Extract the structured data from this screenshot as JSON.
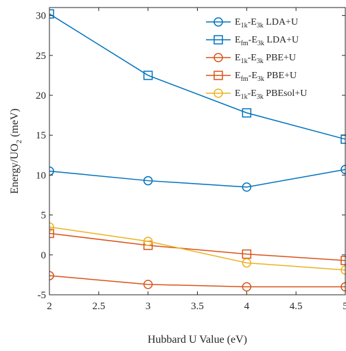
{
  "chart_data": {
    "type": "line",
    "xlabel": "Hubbard U Value (eV)",
    "ylabel_main": "Energy/UO",
    "ylabel_sub": "2",
    "ylabel_unit": " (meV)",
    "xlim": [
      2,
      5
    ],
    "ylim": [
      -5,
      31
    ],
    "x_ticks": [
      "2",
      "2.5",
      "3",
      "3.5",
      "4",
      "4.5",
      "5"
    ],
    "y_ticks": [
      "-5",
      "0",
      "5",
      "10",
      "15",
      "20",
      "25",
      "30"
    ],
    "legend_position": "top-right",
    "x": [
      2,
      3,
      4,
      5
    ],
    "series": [
      {
        "name_parts": [
          [
            "E",
            ""
          ],
          [
            "1k",
            "sub"
          ],
          [
            "-E",
            ""
          ],
          [
            "3k",
            "sub"
          ],
          [
            " LDA+U",
            ""
          ]
        ],
        "color": "#0072BD",
        "marker": "circle",
        "values": [
          10.5,
          9.3,
          8.5,
          10.7
        ]
      },
      {
        "name_parts": [
          [
            "E",
            ""
          ],
          [
            "fm",
            "sub"
          ],
          [
            "-E",
            ""
          ],
          [
            "3k",
            "sub"
          ],
          [
            " LDA+U",
            ""
          ]
        ],
        "color": "#0072BD",
        "marker": "square",
        "values": [
          30.2,
          22.5,
          17.8,
          14.5
        ]
      },
      {
        "name_parts": [
          [
            "E",
            ""
          ],
          [
            "1k",
            "sub"
          ],
          [
            "-E",
            ""
          ],
          [
            "3k",
            "sub"
          ],
          [
            " PBE+U",
            ""
          ]
        ],
        "color": "#D95319",
        "marker": "circle",
        "values": [
          -2.6,
          -3.7,
          -4.0,
          -4.0
        ]
      },
      {
        "name_parts": [
          [
            "E",
            ""
          ],
          [
            "fm",
            "sub"
          ],
          [
            "-E",
            ""
          ],
          [
            "3k",
            "sub"
          ],
          [
            " PBE+U",
            ""
          ]
        ],
        "color": "#D95319",
        "marker": "square",
        "values": [
          2.7,
          1.2,
          0.1,
          -0.7
        ]
      },
      {
        "name_parts": [
          [
            "E",
            ""
          ],
          [
            "1k",
            "sub"
          ],
          [
            "-E",
            ""
          ],
          [
            "3k",
            "sub"
          ],
          [
            " PBEsol+U",
            ""
          ]
        ],
        "color": "#EDB120",
        "marker": "circle",
        "values": [
          3.5,
          1.7,
          -1.0,
          -1.9
        ]
      }
    ]
  }
}
